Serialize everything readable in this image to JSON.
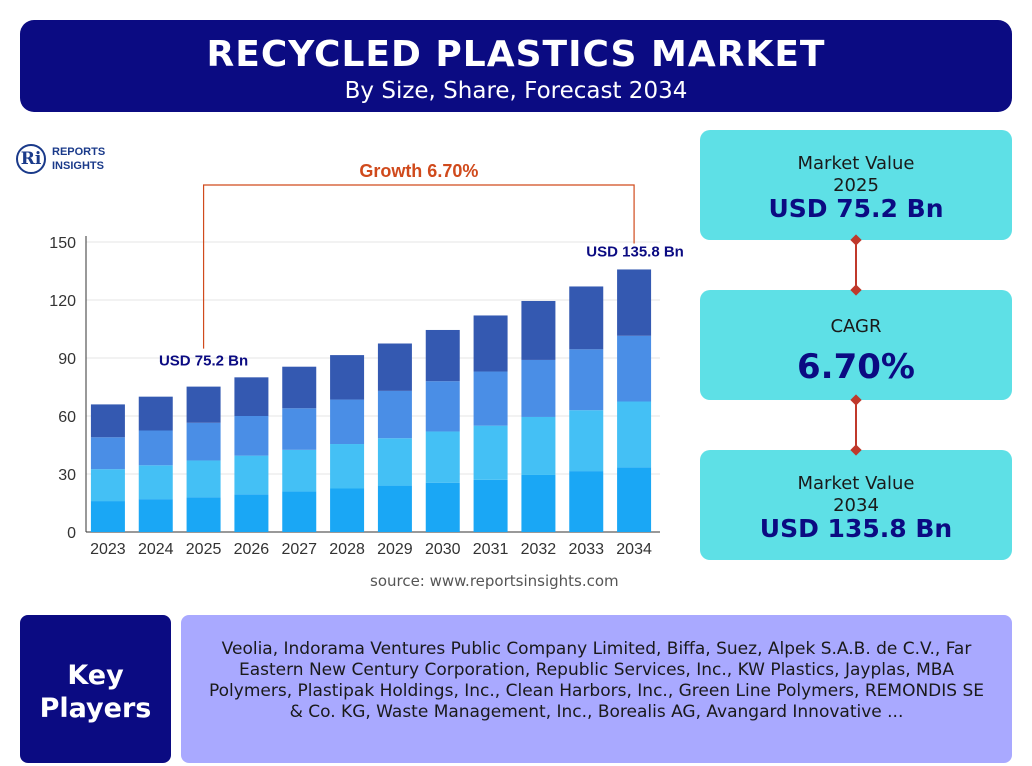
{
  "header": {
    "title": "RECYCLED PLASTICS MARKET",
    "subtitle": "By Size, Share, Forecast 2034"
  },
  "logo": {
    "text": "REPORTS\nINSIGHTS",
    "mark": "Ri"
  },
  "chart_data": {
    "type": "bar",
    "stacked": true,
    "categories": [
      "2023",
      "2024",
      "2025",
      "2026",
      "2027",
      "2028",
      "2029",
      "2030",
      "2031",
      "2032",
      "2033",
      "2034"
    ],
    "series": [
      {
        "values": [
          16,
          17,
          18,
          19.5,
          21,
          22.5,
          24,
          25.5,
          27,
          29.5,
          31.5,
          33.5
        ],
        "color": "#1aa7f5"
      },
      {
        "values": [
          16.5,
          17.5,
          19,
          20,
          21.5,
          23,
          24.5,
          26.5,
          28,
          30,
          31.5,
          34
        ],
        "color": "#44c0f5"
      },
      {
        "values": [
          16.5,
          18,
          19.5,
          20.5,
          21.5,
          23,
          24.5,
          26,
          28,
          29.5,
          31.5,
          34
        ],
        "color": "#4a8ee6"
      },
      {
        "values": [
          17,
          17.5,
          18.7,
          20,
          21.5,
          23,
          24.5,
          26.5,
          29,
          30.5,
          32.5,
          34.3
        ],
        "color": "#3459b1"
      }
    ],
    "ylim": [
      0,
      150
    ],
    "yticks": [
      0,
      30,
      60,
      90,
      120,
      150
    ],
    "grid": true,
    "annotations": {
      "growth_label": "Growth 6.70%",
      "start_label": "USD 75.2 Bn",
      "end_label": "USD 135.8 Bn"
    }
  },
  "source": "source: www.reportsinsights.com",
  "stats": {
    "market_value_2025": {
      "label": "Market Value",
      "year": "2025",
      "value": "USD 75.2 Bn"
    },
    "cagr": {
      "label": "CAGR",
      "value": "6.70%"
    },
    "market_value_2034": {
      "label": "Market Value",
      "year": "2034",
      "value": "USD 135.8 Bn"
    }
  },
  "key_players": {
    "label": "Key\nPlayers",
    "text": "Veolia, Indorama Ventures Public Company Limited, Biffa, Suez, Alpek S.A.B. de C.V., Far Eastern New Century Corporation, Republic Services, Inc., KW Plastics, Jayplas, MBA Polymers, Plastipak Holdings, Inc., Clean Harbors, Inc., Green Line Polymers, REMONDIS SE & Co. KG, Waste Management, Inc., Borealis AG, Avangard Innovative ..."
  }
}
